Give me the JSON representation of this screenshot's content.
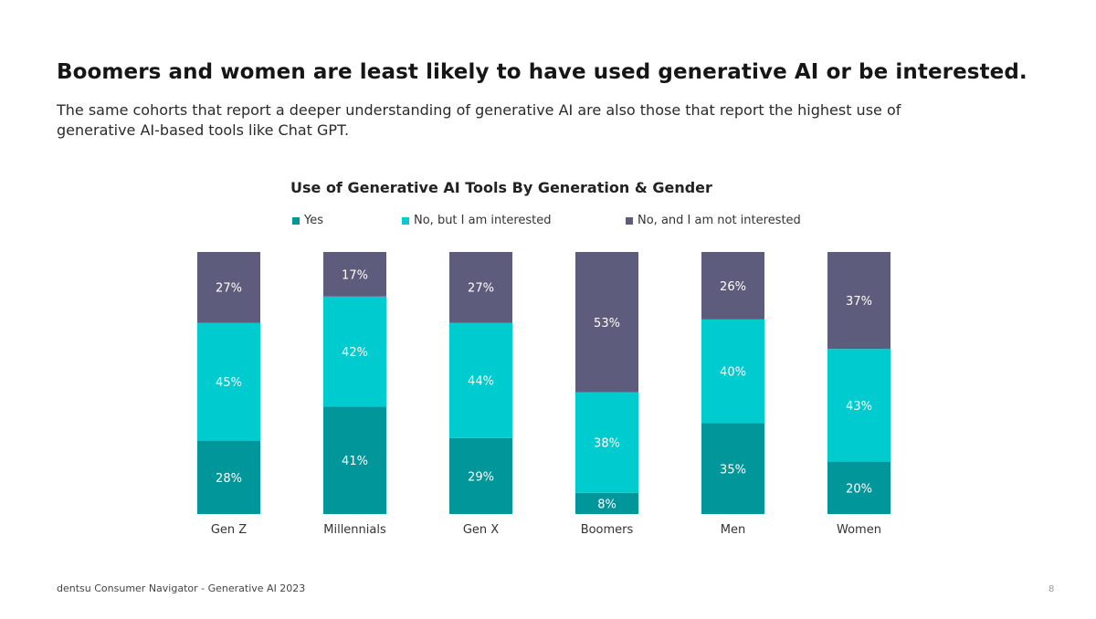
{
  "slide": {
    "title": "Boomers and women are least likely to have used generative AI or be interested.",
    "subtitle": "The same cohorts that report a deeper understanding of generative AI are also those that report the highest use of generative AI-based tools like Chat GPT.",
    "footer": "dentsu Consumer Navigator - Generative AI 2023",
    "page_number": "8"
  },
  "chart_data": {
    "type": "bar",
    "stacked": true,
    "title": "Use of Generative AI Tools By Generation & Gender",
    "categories": [
      "Gen Z",
      "Millennials",
      "Gen X",
      "Boomers",
      "Men",
      "Women"
    ],
    "series": [
      {
        "name": "Yes",
        "color": "#00969a",
        "values": [
          28,
          41,
          29,
          8,
          35,
          20
        ]
      },
      {
        "name": "No, but I am interested",
        "color": "#00cbcf",
        "values": [
          45,
          42,
          44,
          38,
          40,
          43
        ]
      },
      {
        "name": "No, and I am not interested",
        "color": "#5e5c7c",
        "values": [
          27,
          17,
          27,
          53,
          26,
          37
        ]
      }
    ],
    "value_suffix": "%",
    "ylim": [
      0,
      100
    ],
    "legend": "top",
    "grid": false
  }
}
